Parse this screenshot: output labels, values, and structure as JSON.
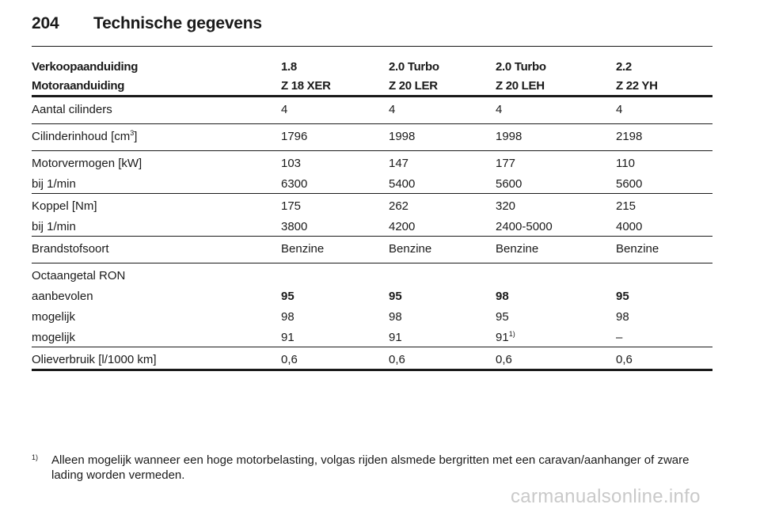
{
  "page": {
    "number": "204",
    "title": "Technische gegevens"
  },
  "table": {
    "header_row_1": {
      "label": "Verkoopaanduiding",
      "values": [
        "1.8",
        "2.0 Turbo",
        "2.0 Turbo",
        "2.2"
      ]
    },
    "header_row_2": {
      "label": "Motoraanduiding",
      "values": [
        "Z 18 XER",
        "Z 20 LER",
        "Z 20 LEH",
        "Z 22 YH"
      ]
    },
    "rows": [
      {
        "label": "Aantal cilinders",
        "values": [
          "4",
          "4",
          "4",
          "4"
        ]
      },
      {
        "label_pre": "Cilinderinhoud [cm",
        "label_sup": "3",
        "label_post": "]",
        "values": [
          "1796",
          "1998",
          "1998",
          "2198"
        ]
      },
      {
        "label": "Motorvermogen [kW]",
        "values": [
          "103",
          "147",
          "177",
          "110"
        ]
      },
      {
        "label": "bij 1/min",
        "values": [
          "6300",
          "5400",
          "5600",
          "5600"
        ]
      },
      {
        "label": "Koppel [Nm]",
        "values": [
          "175",
          "262",
          "320",
          "215"
        ]
      },
      {
        "label": "bij 1/min",
        "values": [
          "3800",
          "4200",
          "2400-5000",
          "4000"
        ]
      },
      {
        "label": "Brandstofsoort",
        "values": [
          "Benzine",
          "Benzine",
          "Benzine",
          "Benzine"
        ]
      },
      {
        "label": "Octaangetal RON",
        "values": [
          "",
          "",
          "",
          ""
        ]
      },
      {
        "label": "aanbevolen",
        "values": [
          "95",
          "95",
          "98",
          "95"
        ]
      },
      {
        "label": "mogelijk",
        "values": [
          "98",
          "98",
          "95",
          "98"
        ]
      },
      {
        "label": "mogelijk",
        "values": [
          "91",
          "91",
          "91",
          "–"
        ],
        "sup_col3": "1)"
      },
      {
        "label": "Olieverbruik [l/1000 km]",
        "values": [
          "0,6",
          "0,6",
          "0,6",
          "0,6"
        ]
      }
    ]
  },
  "footnote": {
    "mark": "1)",
    "text": "Alleen mogelijk wanneer een hoge motorbelasting, volgas rijden alsmede bergritten met een caravan/aanhanger of zware lading worden vermeden."
  },
  "watermark": "carmanualsonline.info"
}
